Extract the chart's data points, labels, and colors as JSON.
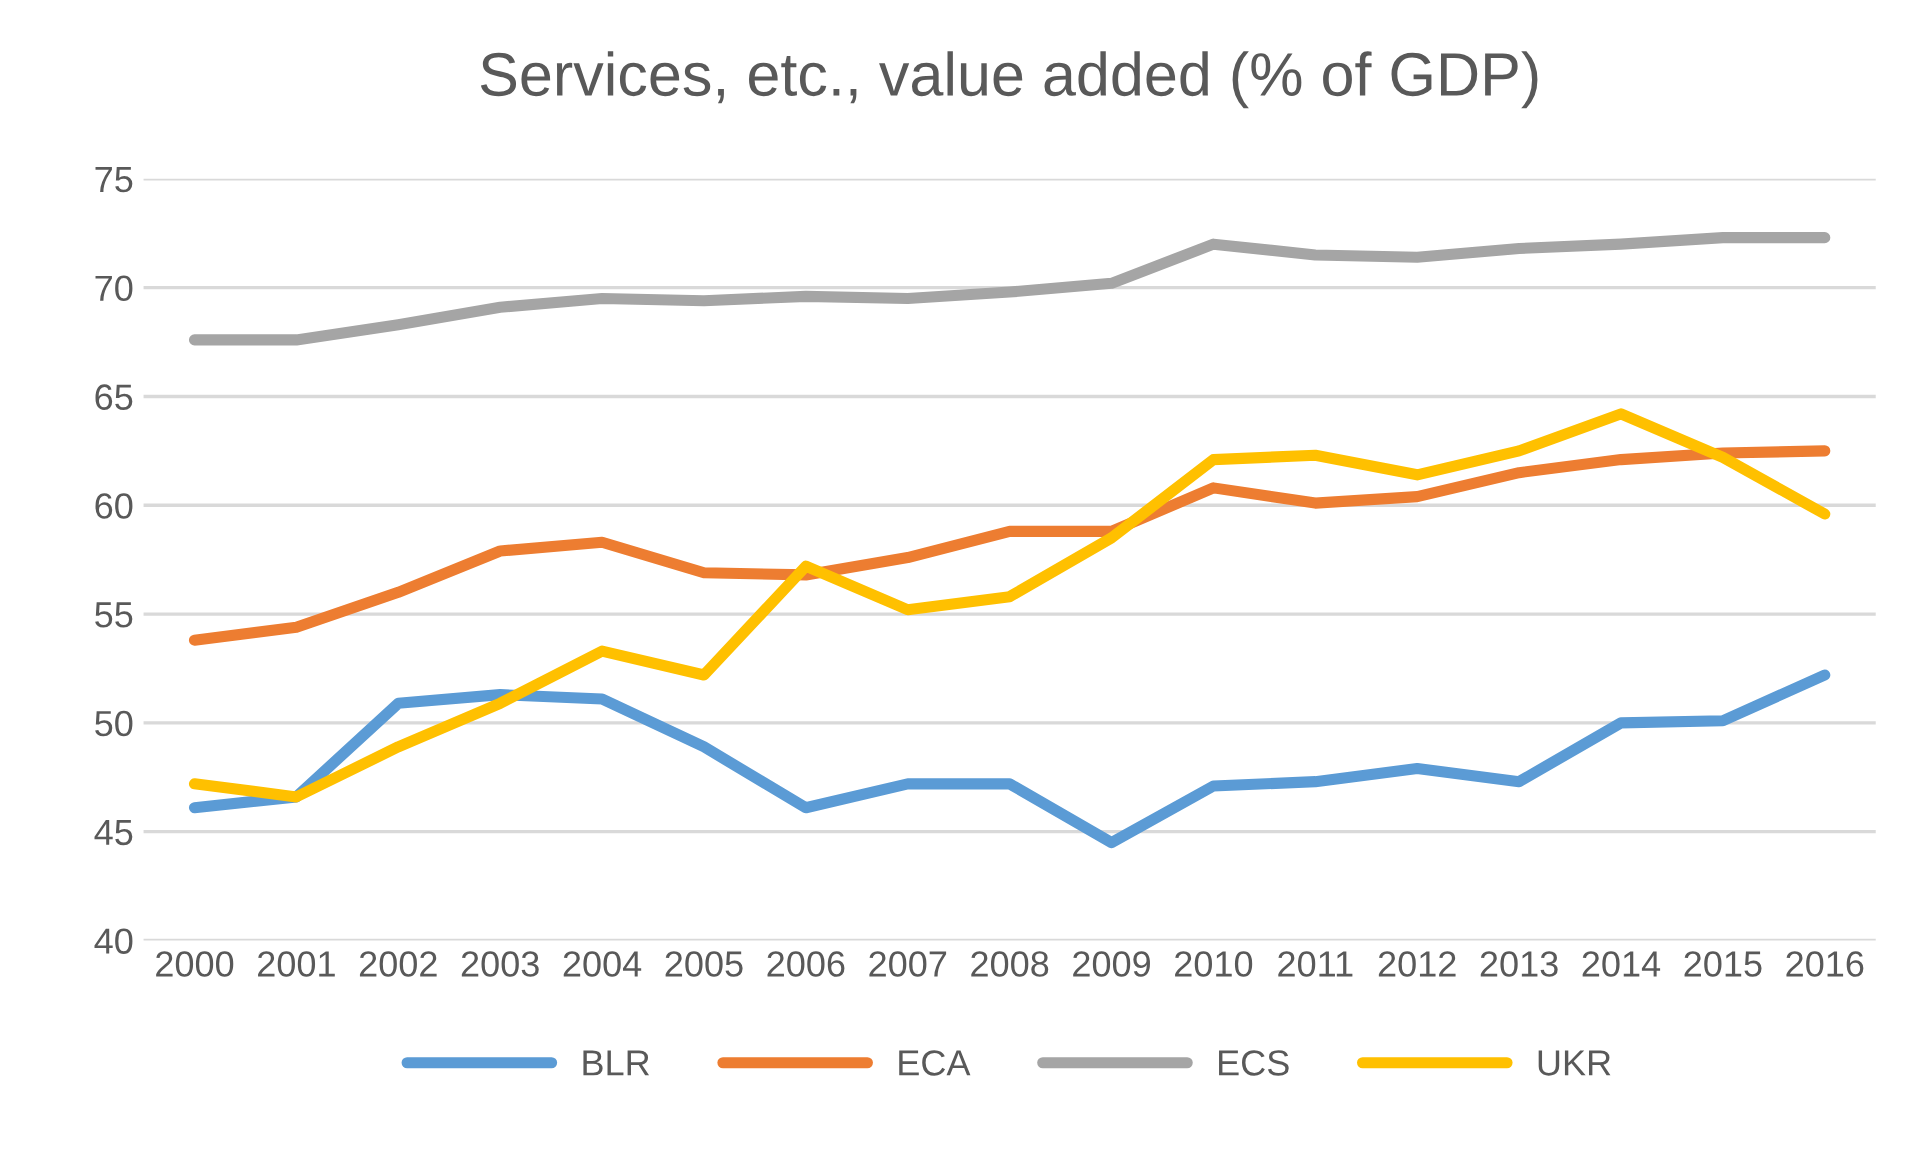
{
  "chart_data": {
    "type": "line",
    "title": "Services, etc., value added (% of GDP)",
    "categories": [
      "2000",
      "2001",
      "2002",
      "2003",
      "2004",
      "2005",
      "2006",
      "2007",
      "2008",
      "2009",
      "2010",
      "2011",
      "2012",
      "2013",
      "2014",
      "2015",
      "2016"
    ],
    "series": [
      {
        "name": "BLR",
        "color": "#5b9bd5",
        "values": [
          46.1,
          46.6,
          50.9,
          51.3,
          51.1,
          48.9,
          46.1,
          47.2,
          47.2,
          44.5,
          47.1,
          47.3,
          47.9,
          47.3,
          50.0,
          50.1,
          52.2
        ]
      },
      {
        "name": "ECA",
        "color": "#ed7d31",
        "values": [
          53.8,
          54.4,
          56.0,
          57.9,
          58.3,
          56.9,
          56.8,
          57.6,
          58.8,
          58.8,
          60.8,
          60.1,
          60.4,
          61.5,
          62.1,
          62.4,
          62.5
        ]
      },
      {
        "name": "ECS",
        "color": "#a5a5a5",
        "values": [
          67.6,
          67.6,
          68.3,
          69.1,
          69.5,
          69.4,
          69.6,
          69.5,
          69.8,
          70.2,
          72.0,
          71.5,
          71.4,
          71.8,
          72.0,
          72.3,
          72.3
        ]
      },
      {
        "name": "UKR",
        "color": "#ffc000",
        "values": [
          47.2,
          46.6,
          48.9,
          50.9,
          53.3,
          52.2,
          57.2,
          55.2,
          55.8,
          58.5,
          62.1,
          62.3,
          61.4,
          62.5,
          64.2,
          62.2,
          59.6
        ]
      }
    ],
    "ylim": [
      40,
      75
    ],
    "yticks": [
      40,
      45,
      50,
      55,
      60,
      65,
      70,
      75
    ],
    "grid": "y",
    "legend": "bottom",
    "marker": "none",
    "line_style": "solid"
  }
}
